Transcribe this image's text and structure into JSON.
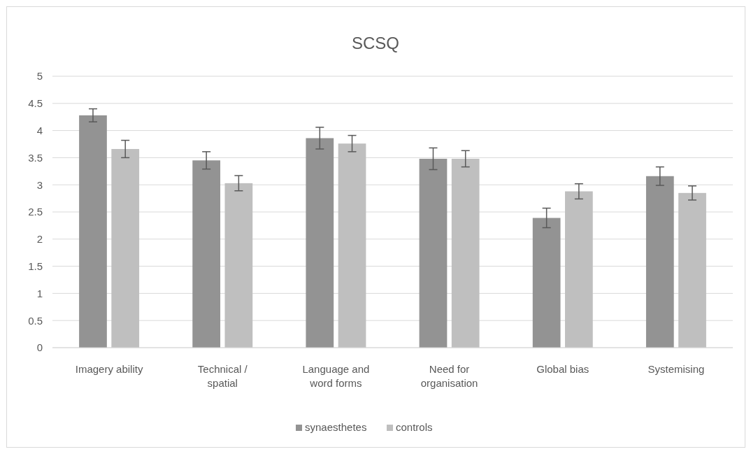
{
  "chart_data": {
    "type": "bar",
    "title": "SCSQ",
    "categories": [
      "Imagery ability",
      "Technical / spatial",
      "Language and word forms",
      "Need for organisation",
      "Global bias",
      "Systemising"
    ],
    "series": [
      {
        "name": "synaesthetes",
        "color": "#939393",
        "values": [
          4.28,
          3.45,
          3.86,
          3.48,
          2.39,
          3.16
        ],
        "errors": [
          0.12,
          0.16,
          0.2,
          0.2,
          0.18,
          0.17
        ]
      },
      {
        "name": "controls",
        "color": "#bfbfbf",
        "values": [
          3.66,
          3.03,
          3.76,
          3.48,
          2.88,
          2.85
        ],
        "errors": [
          0.16,
          0.14,
          0.15,
          0.15,
          0.14,
          0.13
        ]
      }
    ],
    "ylim": [
      0,
      5
    ],
    "yticks": [
      0,
      0.5,
      1,
      1.5,
      2,
      2.5,
      3,
      3.5,
      4,
      4.5,
      5
    ],
    "grid": "y",
    "legend": "bottom"
  }
}
